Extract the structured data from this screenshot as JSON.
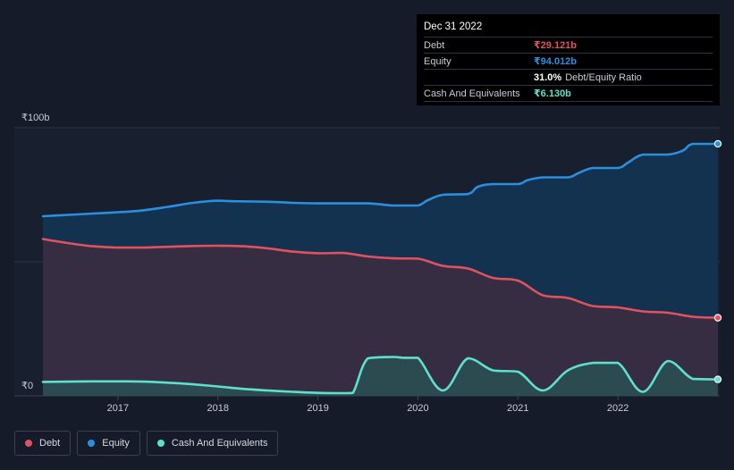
{
  "chart_data": {
    "type": "area",
    "y_top_label": "₹100b",
    "y_bottom_label": "₹0",
    "ylim": [
      0,
      100
    ],
    "xlim": [
      2016.25,
      2023.0
    ],
    "x_ticks": [
      {
        "value": 2017,
        "label": "2017"
      },
      {
        "value": 2018,
        "label": "2018"
      },
      {
        "value": 2019,
        "label": "2019"
      },
      {
        "value": 2020,
        "label": "2020"
      },
      {
        "value": 2021,
        "label": "2021"
      },
      {
        "value": 2022,
        "label": "2022"
      }
    ],
    "series": [
      {
        "name": "Equity",
        "color": "#2b8fe0",
        "x": [
          2016.25,
          2016.5,
          2016.75,
          2017.0,
          2017.25,
          2017.5,
          2017.75,
          2018.0,
          2018.15,
          2018.5,
          2018.75,
          2019.0,
          2019.25,
          2019.5,
          2019.75,
          2019.85,
          2020.0,
          2020.1,
          2020.25,
          2020.5,
          2020.6,
          2020.75,
          2021.0,
          2021.1,
          2021.25,
          2021.5,
          2021.6,
          2021.75,
          2022.0,
          2022.1,
          2022.25,
          2022.5,
          2022.65,
          2022.75,
          2023.0
        ],
        "values": [
          67.0,
          67.5,
          68.0,
          68.5,
          69.2,
          70.5,
          72.0,
          72.8,
          72.6,
          72.4,
          72.0,
          71.8,
          71.8,
          71.8,
          71.0,
          71.0,
          71.0,
          73.0,
          75.0,
          75.3,
          78.0,
          79.0,
          79.0,
          80.5,
          81.5,
          81.5,
          83.0,
          85.0,
          85.0,
          87.0,
          90.0,
          90.0,
          91.5,
          94.0,
          94.012
        ]
      },
      {
        "name": "Debt",
        "color": "#e0525f",
        "x": [
          2016.25,
          2016.5,
          2016.75,
          2017.0,
          2017.25,
          2017.5,
          2017.75,
          2018.0,
          2018.25,
          2018.5,
          2018.75,
          2019.0,
          2019.25,
          2019.5,
          2019.75,
          2020.0,
          2020.25,
          2020.5,
          2020.75,
          2021.0,
          2021.25,
          2021.5,
          2021.75,
          2022.0,
          2022.25,
          2022.5,
          2022.75,
          2023.0
        ],
        "values": [
          58.5,
          57.0,
          55.8,
          55.3,
          55.3,
          55.6,
          55.9,
          56.0,
          55.8,
          55.0,
          53.8,
          53.2,
          53.3,
          52.0,
          51.3,
          51.2,
          48.5,
          47.5,
          44.0,
          43.0,
          37.5,
          36.5,
          33.5,
          33.0,
          31.5,
          31.0,
          29.5,
          29.121
        ]
      },
      {
        "name": "Cash And Equivalents",
        "color": "#5fe0cc",
        "x": [
          2016.25,
          2016.5,
          2016.75,
          2017.0,
          2017.25,
          2017.5,
          2017.75,
          2018.0,
          2018.25,
          2018.5,
          2018.75,
          2019.0,
          2019.25,
          2019.35,
          2019.5,
          2019.75,
          2019.85,
          2020.0,
          2020.25,
          2020.5,
          2020.75,
          2021.0,
          2021.25,
          2021.5,
          2021.75,
          2022.0,
          2022.25,
          2022.5,
          2022.75,
          2023.0
        ],
        "values": [
          5.2,
          5.3,
          5.4,
          5.4,
          5.3,
          4.9,
          4.3,
          3.5,
          2.6,
          2.0,
          1.5,
          1.1,
          1.0,
          1.1,
          14.0,
          14.5,
          14.2,
          14.2,
          2.0,
          14.0,
          9.5,
          9.0,
          2.0,
          9.5,
          12.3,
          12.3,
          1.5,
          13.0,
          6.3,
          6.13
        ]
      }
    ]
  },
  "tooltip": {
    "date": "Dec 31 2022",
    "rows": [
      {
        "label": "Debt",
        "value": "₹29.121b",
        "color": "#e0525f"
      },
      {
        "label": "Equity",
        "value": "₹94.012b",
        "color": "#2b8fe0"
      },
      {
        "label": "",
        "value": "31.0%",
        "extra": "Debt/Equity Ratio",
        "color": "#ffffff"
      },
      {
        "label": "Cash And Equivalents",
        "value": "₹6.130b",
        "color": "#5fe0cc"
      }
    ]
  },
  "legend": [
    {
      "label": "Debt",
      "color": "#e0525f"
    },
    {
      "label": "Equity",
      "color": "#2b8fe0"
    },
    {
      "label": "Cash And Equivalents",
      "color": "#5fe0cc"
    }
  ]
}
